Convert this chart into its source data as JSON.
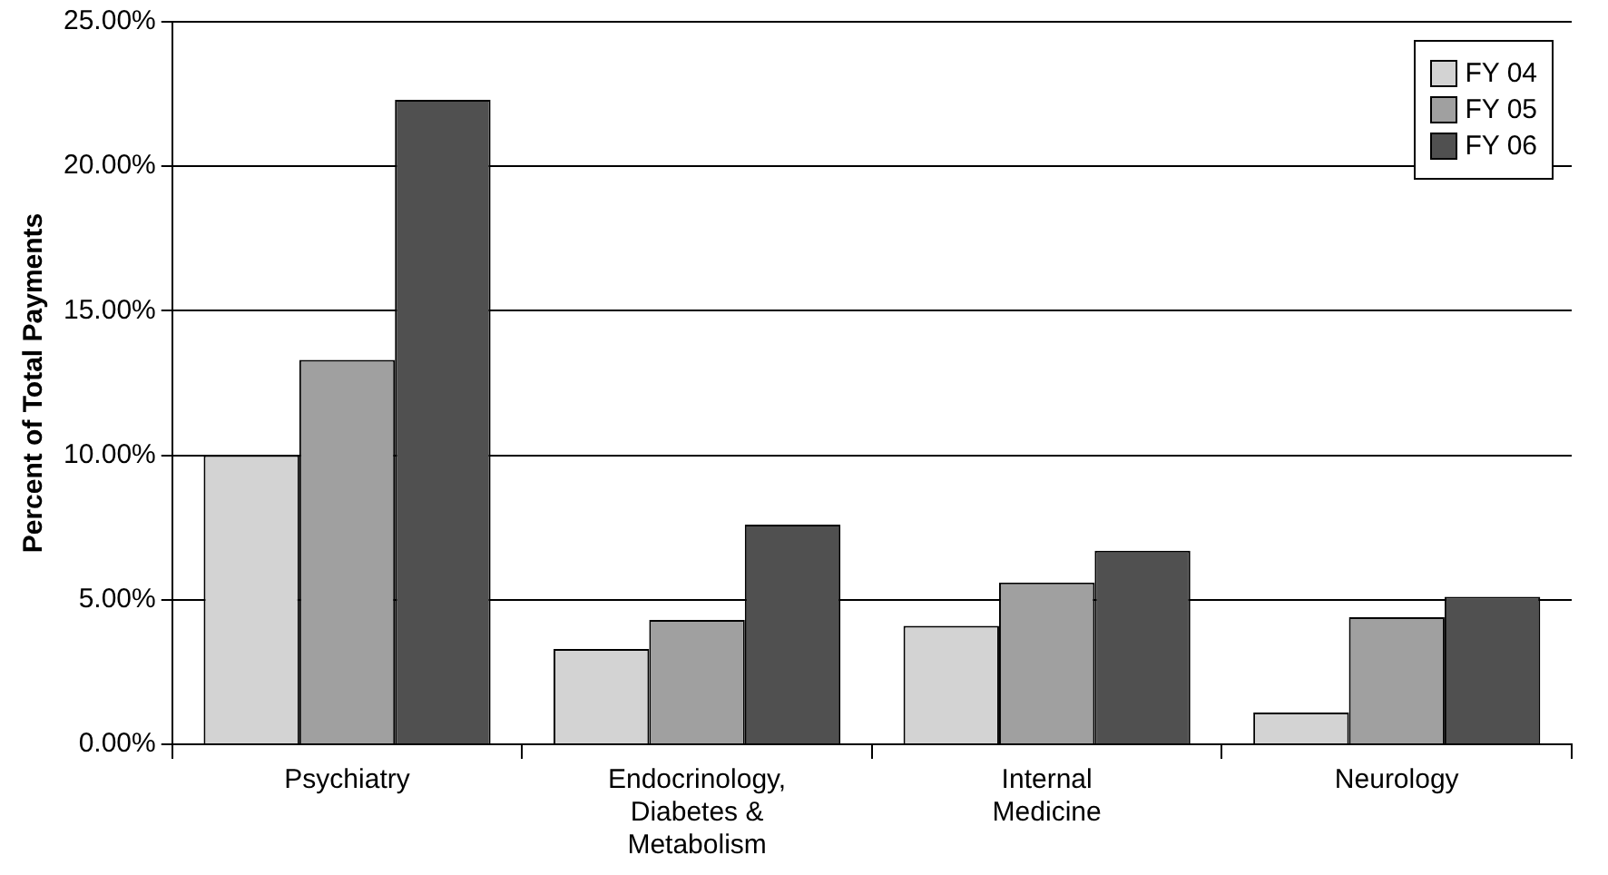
{
  "chart_data": {
    "type": "bar",
    "ylabel": "Percent of Total Payments",
    "categories": [
      "Psychiatry",
      "Endocrinology, Diabetes & Metabolism",
      "Internal Medicine",
      "Neurology"
    ],
    "series": [
      {
        "name": "FY 04",
        "color": "#d3d3d3",
        "values": [
          10.0,
          3.3,
          4.1,
          1.1
        ]
      },
      {
        "name": "FY 05",
        "color": "#a0a0a0",
        "values": [
          13.3,
          4.3,
          5.6,
          4.4
        ]
      },
      {
        "name": "FY 06",
        "color": "#505050",
        "values": [
          22.3,
          7.6,
          6.7,
          5.1
        ]
      }
    ],
    "ylim": [
      0,
      25
    ],
    "yticks": [
      {
        "value": 0,
        "label": "0.00%"
      },
      {
        "value": 5,
        "label": "5.00%"
      },
      {
        "value": 10,
        "label": "10.00%"
      },
      {
        "value": 15,
        "label": "15.00%"
      },
      {
        "value": 20,
        "label": "20.00%"
      },
      {
        "value": 25,
        "label": "25.00%"
      }
    ],
    "grid": "y",
    "legend": "top right"
  }
}
